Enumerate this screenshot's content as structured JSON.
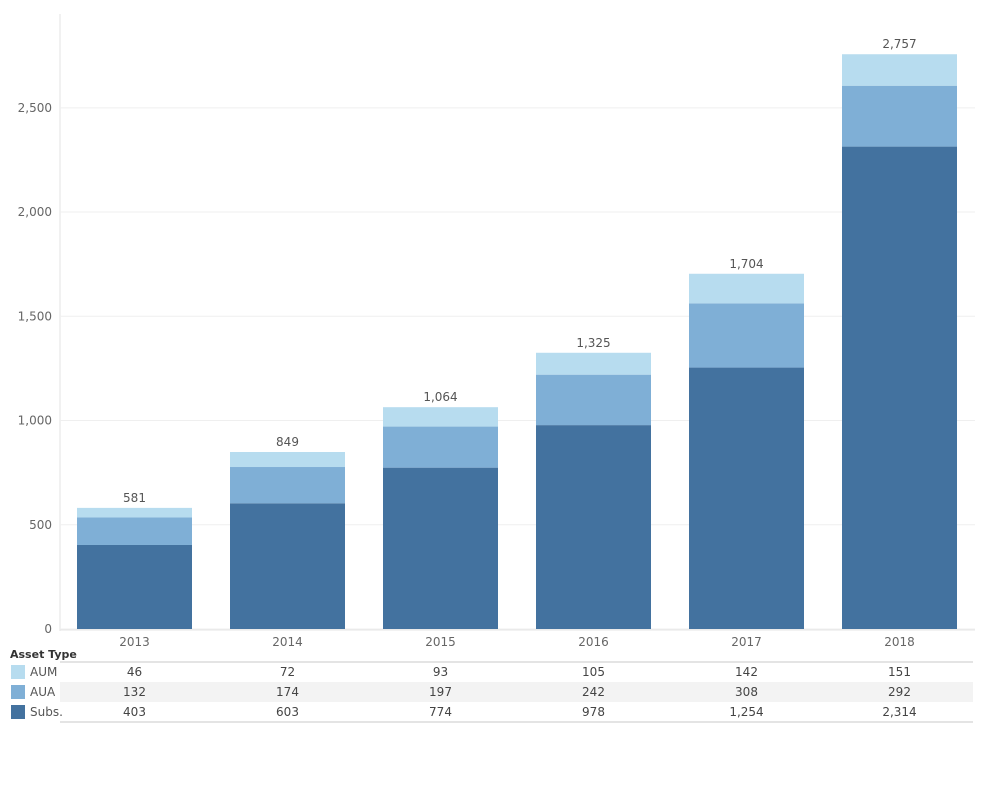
{
  "chart_data": {
    "type": "bar",
    "stacked": true,
    "categories": [
      "2013",
      "2014",
      "2015",
      "2016",
      "2017",
      "2018"
    ],
    "series": [
      {
        "name": "Subs.",
        "values": [
          403,
          603,
          774,
          978,
          1254,
          2314
        ],
        "color": "#43729f"
      },
      {
        "name": "AUA",
        "values": [
          132,
          174,
          197,
          242,
          308,
          292
        ],
        "color": "#7fafd6"
      },
      {
        "name": "AUM",
        "values": [
          46,
          72,
          93,
          105,
          142,
          151
        ],
        "color": "#b7dcef"
      }
    ],
    "totals": [
      "581",
      "849",
      "1,064",
      "1,325",
      "1,704",
      "2,757"
    ],
    "ylim": [
      0,
      2950
    ],
    "yticks": [
      0,
      500,
      1000,
      1500,
      2000,
      2500
    ],
    "ytick_labels": [
      "0",
      "500",
      "1,000",
      "1,500",
      "2,000",
      "2,500"
    ],
    "grid": true,
    "legend_title": "Asset Type",
    "table_rows": [
      {
        "name": "AUM",
        "color": "#b7dcef",
        "cells": [
          "46",
          "72",
          "93",
          "105",
          "142",
          "151"
        ]
      },
      {
        "name": "AUA",
        "color": "#7fafd6",
        "cells": [
          "132",
          "174",
          "197",
          "242",
          "308",
          "292"
        ]
      },
      {
        "name": "Subs.",
        "color": "#43729f",
        "cells": [
          "403",
          "603",
          "774",
          "978",
          "1,254",
          "2,314"
        ]
      }
    ]
  }
}
